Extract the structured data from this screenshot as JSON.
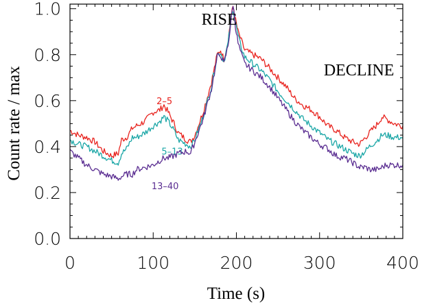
{
  "chart_data": {
    "type": "line",
    "title": "",
    "xlabel": "Time (s)",
    "ylabel": "Count rate / max",
    "xlim": [
      0,
      400
    ],
    "ylim": [
      0.0,
      1.02
    ],
    "x_ticks": [
      0,
      100,
      200,
      300,
      400
    ],
    "x_tick_labels": [
      "0",
      "100",
      "200",
      "300",
      "400"
    ],
    "y_ticks": [
      0.0,
      0.2,
      0.4,
      0.6,
      0.8,
      1.0
    ],
    "y_tick_labels": [
      "0.0",
      "0.2",
      "0.4",
      "0.6",
      "0.8",
      "1.0"
    ],
    "grid": false,
    "annotations": {
      "rise": {
        "text": "RISE",
        "x": 158,
        "y": 0.93
      },
      "decline": {
        "text": "DECLINE",
        "x": 305,
        "y": 0.71
      }
    },
    "series": [
      {
        "name": "2–5",
        "color": "#e8231e",
        "label_at": {
          "x": 104,
          "y": 0.585
        },
        "x": [
          0,
          10,
          20,
          30,
          40,
          50,
          58,
          62,
          68,
          75,
          80,
          90,
          100,
          108,
          113,
          118,
          125,
          130,
          140,
          145,
          150,
          160,
          170,
          177,
          181,
          185,
          190,
          193,
          196,
          199,
          202,
          206,
          210,
          220,
          230,
          240,
          250,
          260,
          270,
          280,
          290,
          300,
          310,
          320,
          330,
          340,
          348,
          355,
          360,
          370,
          375,
          380,
          390,
          400
        ],
        "y": [
          0.47,
          0.45,
          0.44,
          0.42,
          0.38,
          0.36,
          0.37,
          0.43,
          0.44,
          0.48,
          0.49,
          0.51,
          0.55,
          0.56,
          0.58,
          0.55,
          0.5,
          0.46,
          0.43,
          0.42,
          0.45,
          0.55,
          0.68,
          0.8,
          0.82,
          0.78,
          0.86,
          0.95,
          1.01,
          0.95,
          0.9,
          0.86,
          0.82,
          0.8,
          0.78,
          0.74,
          0.7,
          0.66,
          0.61,
          0.58,
          0.56,
          0.53,
          0.49,
          0.47,
          0.44,
          0.42,
          0.41,
          0.44,
          0.46,
          0.5,
          0.53,
          0.52,
          0.5,
          0.49
        ]
      },
      {
        "name": "5–13",
        "color": "#1aa6a6",
        "label_at": {
          "x": 110,
          "y": 0.365
        },
        "x": [
          0,
          10,
          20,
          30,
          40,
          50,
          58,
          62,
          68,
          75,
          80,
          90,
          100,
          108,
          113,
          118,
          125,
          130,
          140,
          145,
          150,
          160,
          170,
          177,
          181,
          185,
          190,
          193,
          196,
          199,
          202,
          206,
          210,
          220,
          230,
          240,
          250,
          260,
          270,
          280,
          290,
          300,
          310,
          320,
          330,
          340,
          348,
          355,
          360,
          370,
          375,
          380,
          390,
          400
        ],
        "y": [
          0.43,
          0.41,
          0.4,
          0.38,
          0.36,
          0.34,
          0.33,
          0.37,
          0.39,
          0.44,
          0.44,
          0.46,
          0.49,
          0.51,
          0.53,
          0.51,
          0.47,
          0.43,
          0.41,
          0.4,
          0.43,
          0.53,
          0.66,
          0.8,
          0.81,
          0.77,
          0.85,
          0.94,
          1.0,
          0.94,
          0.88,
          0.83,
          0.79,
          0.76,
          0.73,
          0.69,
          0.64,
          0.6,
          0.56,
          0.52,
          0.49,
          0.46,
          0.43,
          0.41,
          0.39,
          0.37,
          0.36,
          0.38,
          0.4,
          0.43,
          0.45,
          0.45,
          0.44,
          0.44
        ]
      },
      {
        "name": "13–40",
        "color": "#5a2d91",
        "label_at": {
          "x": 98,
          "y": 0.215
        },
        "x": [
          0,
          10,
          20,
          30,
          40,
          50,
          58,
          62,
          68,
          75,
          80,
          90,
          100,
          108,
          113,
          118,
          125,
          130,
          140,
          145,
          150,
          160,
          170,
          177,
          181,
          185,
          190,
          193,
          196,
          199,
          202,
          206,
          210,
          220,
          230,
          240,
          250,
          260,
          270,
          280,
          290,
          300,
          310,
          320,
          330,
          340,
          348,
          355,
          360,
          370,
          375,
          380,
          390,
          400
        ],
        "y": [
          0.38,
          0.35,
          0.32,
          0.3,
          0.28,
          0.27,
          0.26,
          0.27,
          0.28,
          0.28,
          0.3,
          0.31,
          0.32,
          0.34,
          0.35,
          0.35,
          0.36,
          0.37,
          0.38,
          0.37,
          0.42,
          0.52,
          0.65,
          0.79,
          0.8,
          0.76,
          0.84,
          0.93,
          1.02,
          0.92,
          0.85,
          0.8,
          0.76,
          0.73,
          0.7,
          0.66,
          0.61,
          0.56,
          0.51,
          0.47,
          0.44,
          0.41,
          0.39,
          0.36,
          0.35,
          0.33,
          0.31,
          0.31,
          0.3,
          0.3,
          0.31,
          0.32,
          0.32,
          0.32
        ]
      }
    ]
  }
}
